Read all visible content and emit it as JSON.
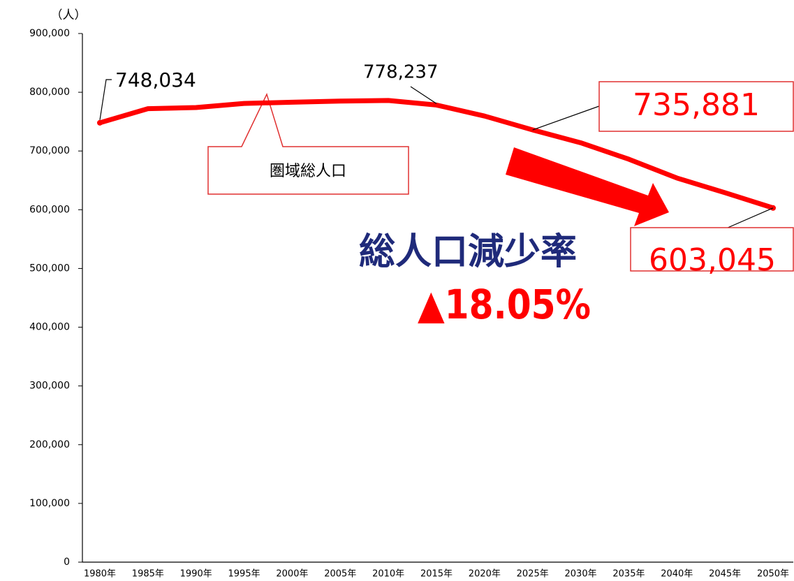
{
  "chart_data": {
    "type": "line",
    "y_unit": "（人）",
    "categories": [
      "1980年",
      "1985年",
      "1990年",
      "1995年",
      "2000年",
      "2005年",
      "2010年",
      "2015年",
      "2020年",
      "2025年",
      "2030年",
      "2035年",
      "2040年",
      "2045年",
      "2050年"
    ],
    "series": [
      {
        "name": "圏域総人口",
        "color": "#ff0000",
        "values": [
          748034,
          772000,
          774000,
          781000,
          783000,
          785000,
          786000,
          778237,
          759500,
          735881,
          714000,
          686000,
          654000,
          629000,
          603045
        ],
        "value_labels": [
          "748,034",
          null,
          null,
          null,
          null,
          null,
          null,
          "778,237",
          null,
          "735,881",
          null,
          null,
          null,
          null,
          "603,045"
        ]
      }
    ],
    "ylim": [
      0,
      900000
    ],
    "yticks": [
      0,
      {
        "value": 100000,
        "label": "100,000"
      },
      {
        "value": 200000,
        "label": "200,000"
      },
      {
        "value": 300000,
        "label": "300,000"
      },
      {
        "value": 400000,
        "label": "400,000"
      },
      {
        "value": 500000,
        "label": "500,000"
      },
      {
        "value": 600000,
        "label": "600,000"
      },
      {
        "value": 700000,
        "label": "700,000"
      },
      {
        "value": 800000,
        "label": "800,000"
      },
      {
        "value": 900000,
        "label": "900,000"
      }
    ],
    "headline": "総人口減少率",
    "rate": "▲18.05%"
  }
}
